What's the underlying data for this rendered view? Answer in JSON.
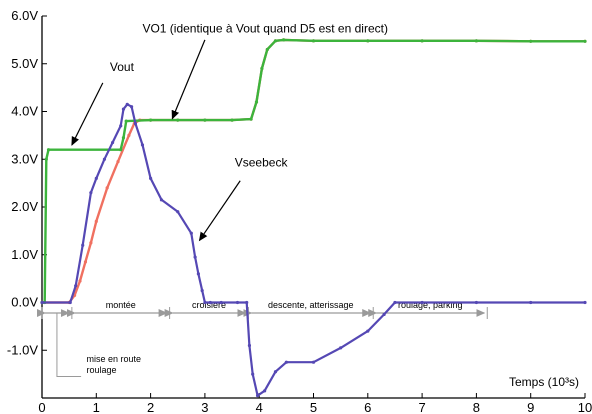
{
  "chart_data": {
    "type": "line",
    "title": "",
    "xlabel": "Temps (10³s)",
    "ylabel": "",
    "xlim": [
      0,
      10
    ],
    "ylim": [
      -2,
      6
    ],
    "x_ticks": [
      "0",
      "1",
      "2",
      "3",
      "4",
      "5",
      "6",
      "7",
      "8",
      "9",
      "10"
    ],
    "y_ticks": [
      "6.0V",
      "5.0V",
      "4.0V",
      "3.0V",
      "2.0V",
      "1.0V",
      "0.0V",
      "-1.0V"
    ],
    "grid": false,
    "series": [
      {
        "name": "Vout",
        "color": "#3cb43c",
        "x": [
          0,
          0.05,
          0.08,
          0.12,
          1.45,
          1.5,
          1.55,
          2.0,
          2.5,
          3.0,
          3.5,
          3.85,
          3.95,
          4.05,
          4.15,
          4.3,
          4.45,
          5.0,
          6.0,
          7.0,
          8.0,
          9.0,
          10.0
        ],
        "y": [
          0,
          0,
          3.0,
          3.2,
          3.2,
          3.45,
          3.8,
          3.82,
          3.82,
          3.82,
          3.82,
          3.84,
          4.2,
          4.9,
          5.3,
          5.48,
          5.5,
          5.48,
          5.48,
          5.48,
          5.48,
          5.47,
          5.47
        ]
      },
      {
        "name": "VO1 (identique à Vout quand D5 est en direct)",
        "color": "#f07060",
        "x": [
          0,
          0.5,
          0.6,
          0.7,
          0.8,
          0.9,
          1.0,
          1.2,
          1.4,
          1.6,
          1.7,
          1.8,
          2.0,
          2.5,
          3.0,
          3.5,
          3.85,
          3.95,
          4.05,
          4.15,
          4.3,
          4.45,
          5.0,
          6.0,
          7.0,
          8.0,
          9.0,
          10.0
        ],
        "y": [
          0,
          0,
          0.15,
          0.45,
          0.85,
          1.25,
          1.7,
          2.4,
          2.95,
          3.5,
          3.75,
          3.82,
          3.82,
          3.82,
          3.82,
          3.82,
          3.84,
          4.2,
          4.9,
          5.3,
          5.48,
          5.5,
          5.48,
          5.48,
          5.48,
          5.48,
          5.47,
          5.47
        ]
      },
      {
        "name": "Vseebeck",
        "color": "#5548b4",
        "x": [
          0,
          0.52,
          0.62,
          0.75,
          0.9,
          1.0,
          1.15,
          1.3,
          1.45,
          1.5,
          1.57,
          1.65,
          1.72,
          1.85,
          2.0,
          2.2,
          2.5,
          2.75,
          2.82,
          2.88,
          2.95,
          3.0,
          3.1,
          3.3,
          3.6,
          3.77,
          3.82,
          3.88,
          3.97,
          4.1,
          4.3,
          4.5,
          5.0,
          5.5,
          6.0,
          6.3,
          6.5,
          7.0,
          8.0,
          9.0,
          10.0
        ],
        "y": [
          0,
          0,
          0.35,
          1.2,
          2.3,
          2.6,
          3.0,
          3.35,
          3.7,
          4.05,
          4.15,
          4.1,
          3.75,
          3.3,
          2.6,
          2.15,
          1.9,
          1.45,
          0.95,
          0.6,
          0.25,
          0,
          0,
          0,
          0,
          0,
          -0.9,
          -1.5,
          -1.95,
          -1.85,
          -1.45,
          -1.25,
          -1.25,
          -0.95,
          -0.6,
          -0.25,
          0,
          0,
          0,
          0,
          0
        ]
      }
    ],
    "annotations": [
      {
        "text": "Vout",
        "points_to": [
          0.55,
          3.3
        ]
      },
      {
        "text": "VO1 (identique à Vout quand D5 est en direct)",
        "points_to": [
          2.4,
          3.85
        ]
      },
      {
        "text": "Vseebeck",
        "points_to": [
          2.9,
          1.3
        ]
      }
    ],
    "phases": [
      {
        "label": "mise en route roulage",
        "label_lines": [
          "mise en route",
          "roulage"
        ],
        "x": [
          0,
          0.55
        ]
      },
      {
        "label": "montée",
        "x": [
          0.55,
          2.35
        ]
      },
      {
        "label": "croisière",
        "x": [
          2.35,
          3.8
        ]
      },
      {
        "label": "descente, atterissage",
        "x": [
          3.8,
          6.1
        ]
      },
      {
        "label": "roulage, parking",
        "x": [
          6.1,
          8.2
        ]
      }
    ]
  }
}
